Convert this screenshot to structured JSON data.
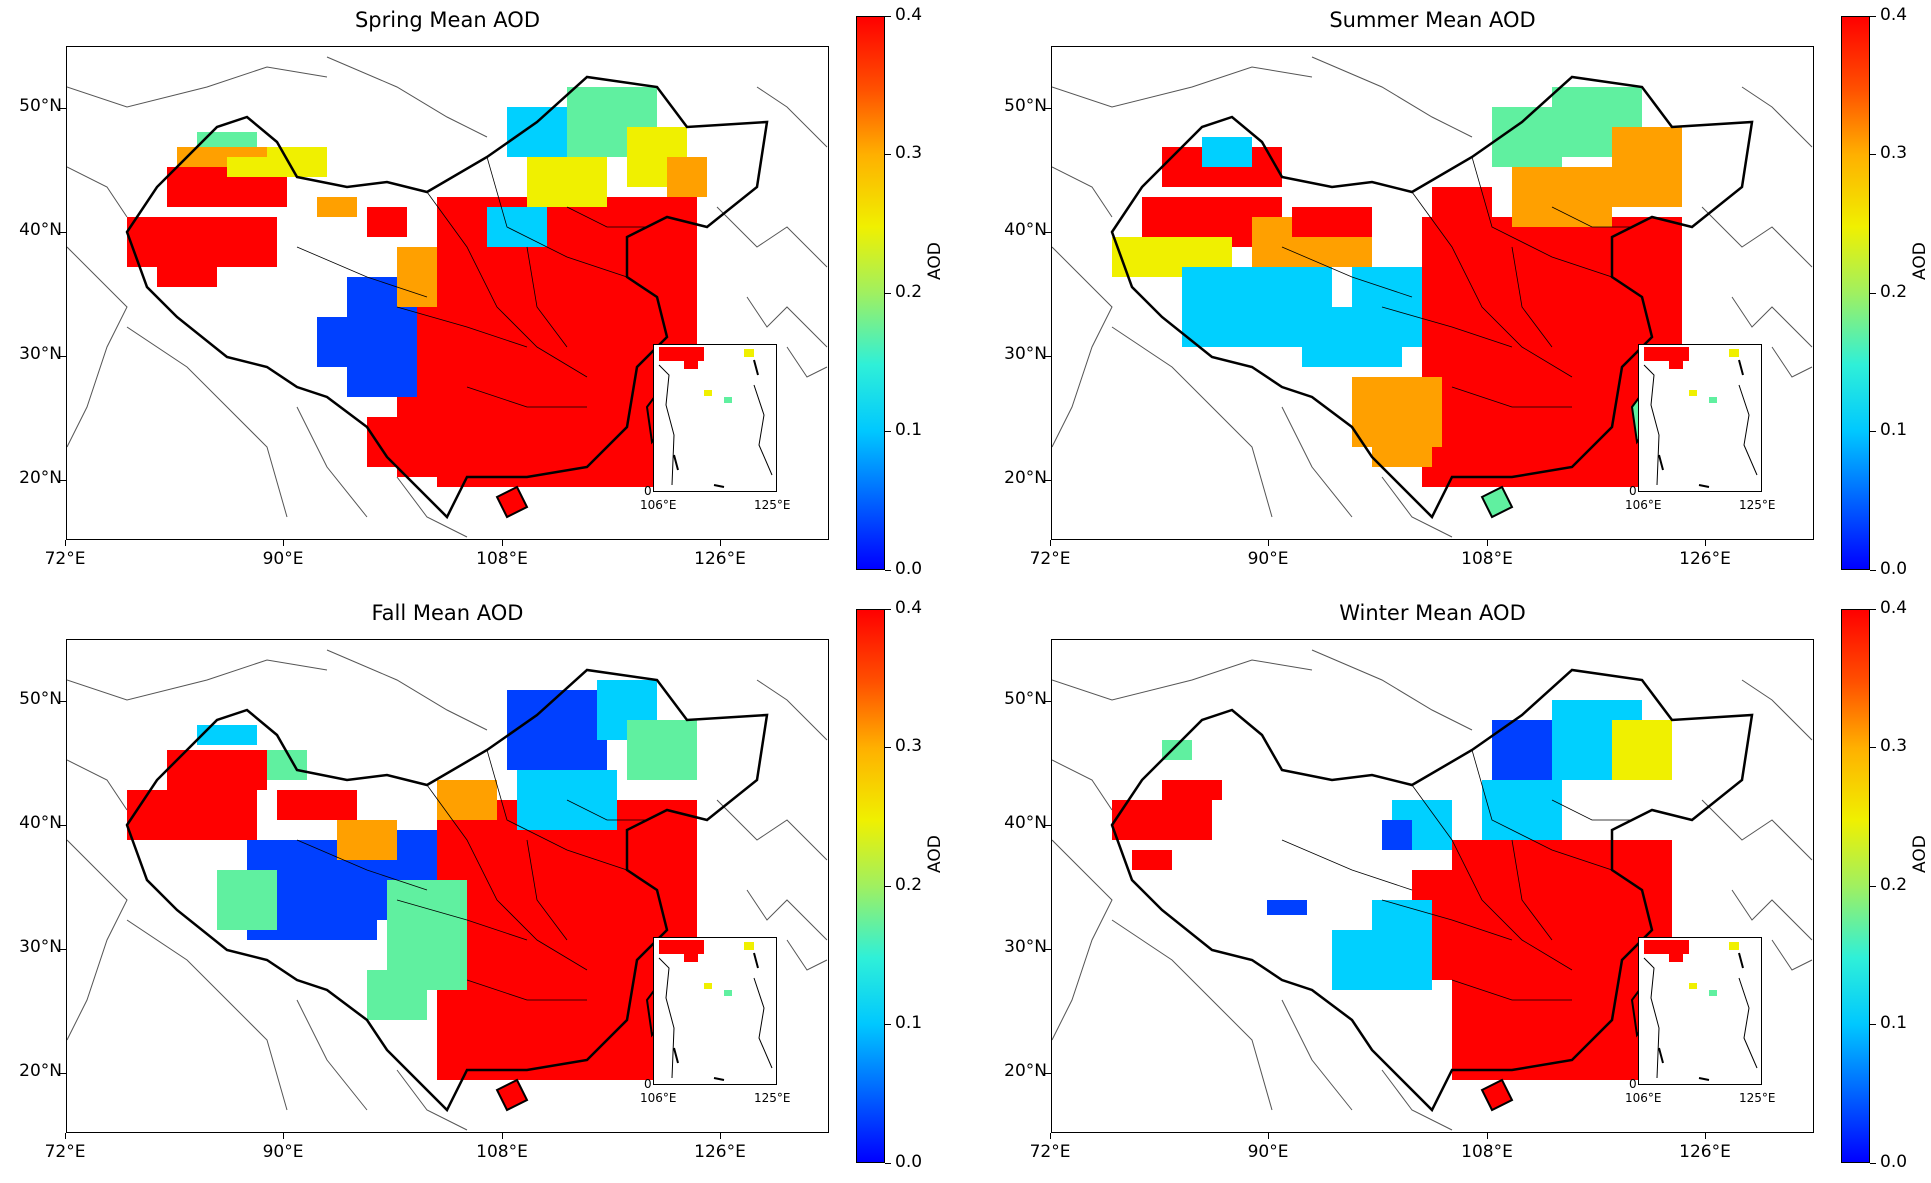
{
  "panels": [
    {
      "title": "Spring Mean AOD"
    },
    {
      "title": "Summer Mean AOD"
    },
    {
      "title": "Fall Mean AOD"
    },
    {
      "title": "Winter Mean AOD"
    }
  ],
  "lat_ticks": [
    "50°N",
    "40°N",
    "30°N",
    "20°N"
  ],
  "lon_ticks": [
    "72°E",
    "90°E",
    "108°E",
    "126°E"
  ],
  "inset_ticks": [
    "106°E",
    "125°E"
  ],
  "inset_zero": "0",
  "colorbar": {
    "label": "AOD",
    "ticks": [
      "0.4",
      "0.3",
      "0.2",
      "0.1",
      "0.0"
    ],
    "range": [
      0.0,
      0.4
    ],
    "colormap": "jet"
  },
  "colors": {
    "high": "#ff0000",
    "mid_high": "#ffa000",
    "mid": "#f0f000",
    "mid_low": "#60f0a0",
    "low_mid": "#00d0ff",
    "low": "#0040ff"
  },
  "chart_data": {
    "type": "heatmap",
    "variable": "AOD",
    "value_range": [
      0.0,
      0.4
    ],
    "lon_ticks": [
      72,
      90,
      108,
      126
    ],
    "lat_ticks": [
      20,
      30,
      40,
      50
    ],
    "seasons": [
      {
        "name": "Spring",
        "regions": {
          "east_china": 0.4,
          "northeast": 0.2,
          "tibet": 0.05,
          "xinjiang": 0.4
        }
      },
      {
        "name": "Summer",
        "regions": {
          "east_china": 0.4,
          "northeast": 0.3,
          "tibet": 0.18,
          "xinjiang": 0.35
        }
      },
      {
        "name": "Fall",
        "regions": {
          "east_china": 0.4,
          "northeast": 0.1,
          "tibet": 0.05,
          "xinjiang": 0.4
        }
      },
      {
        "name": "Winter",
        "regions": {
          "east_china": 0.4,
          "northeast": 0.2,
          "tibet": 0.05,
          "xinjiang": 0.4
        }
      }
    ]
  }
}
